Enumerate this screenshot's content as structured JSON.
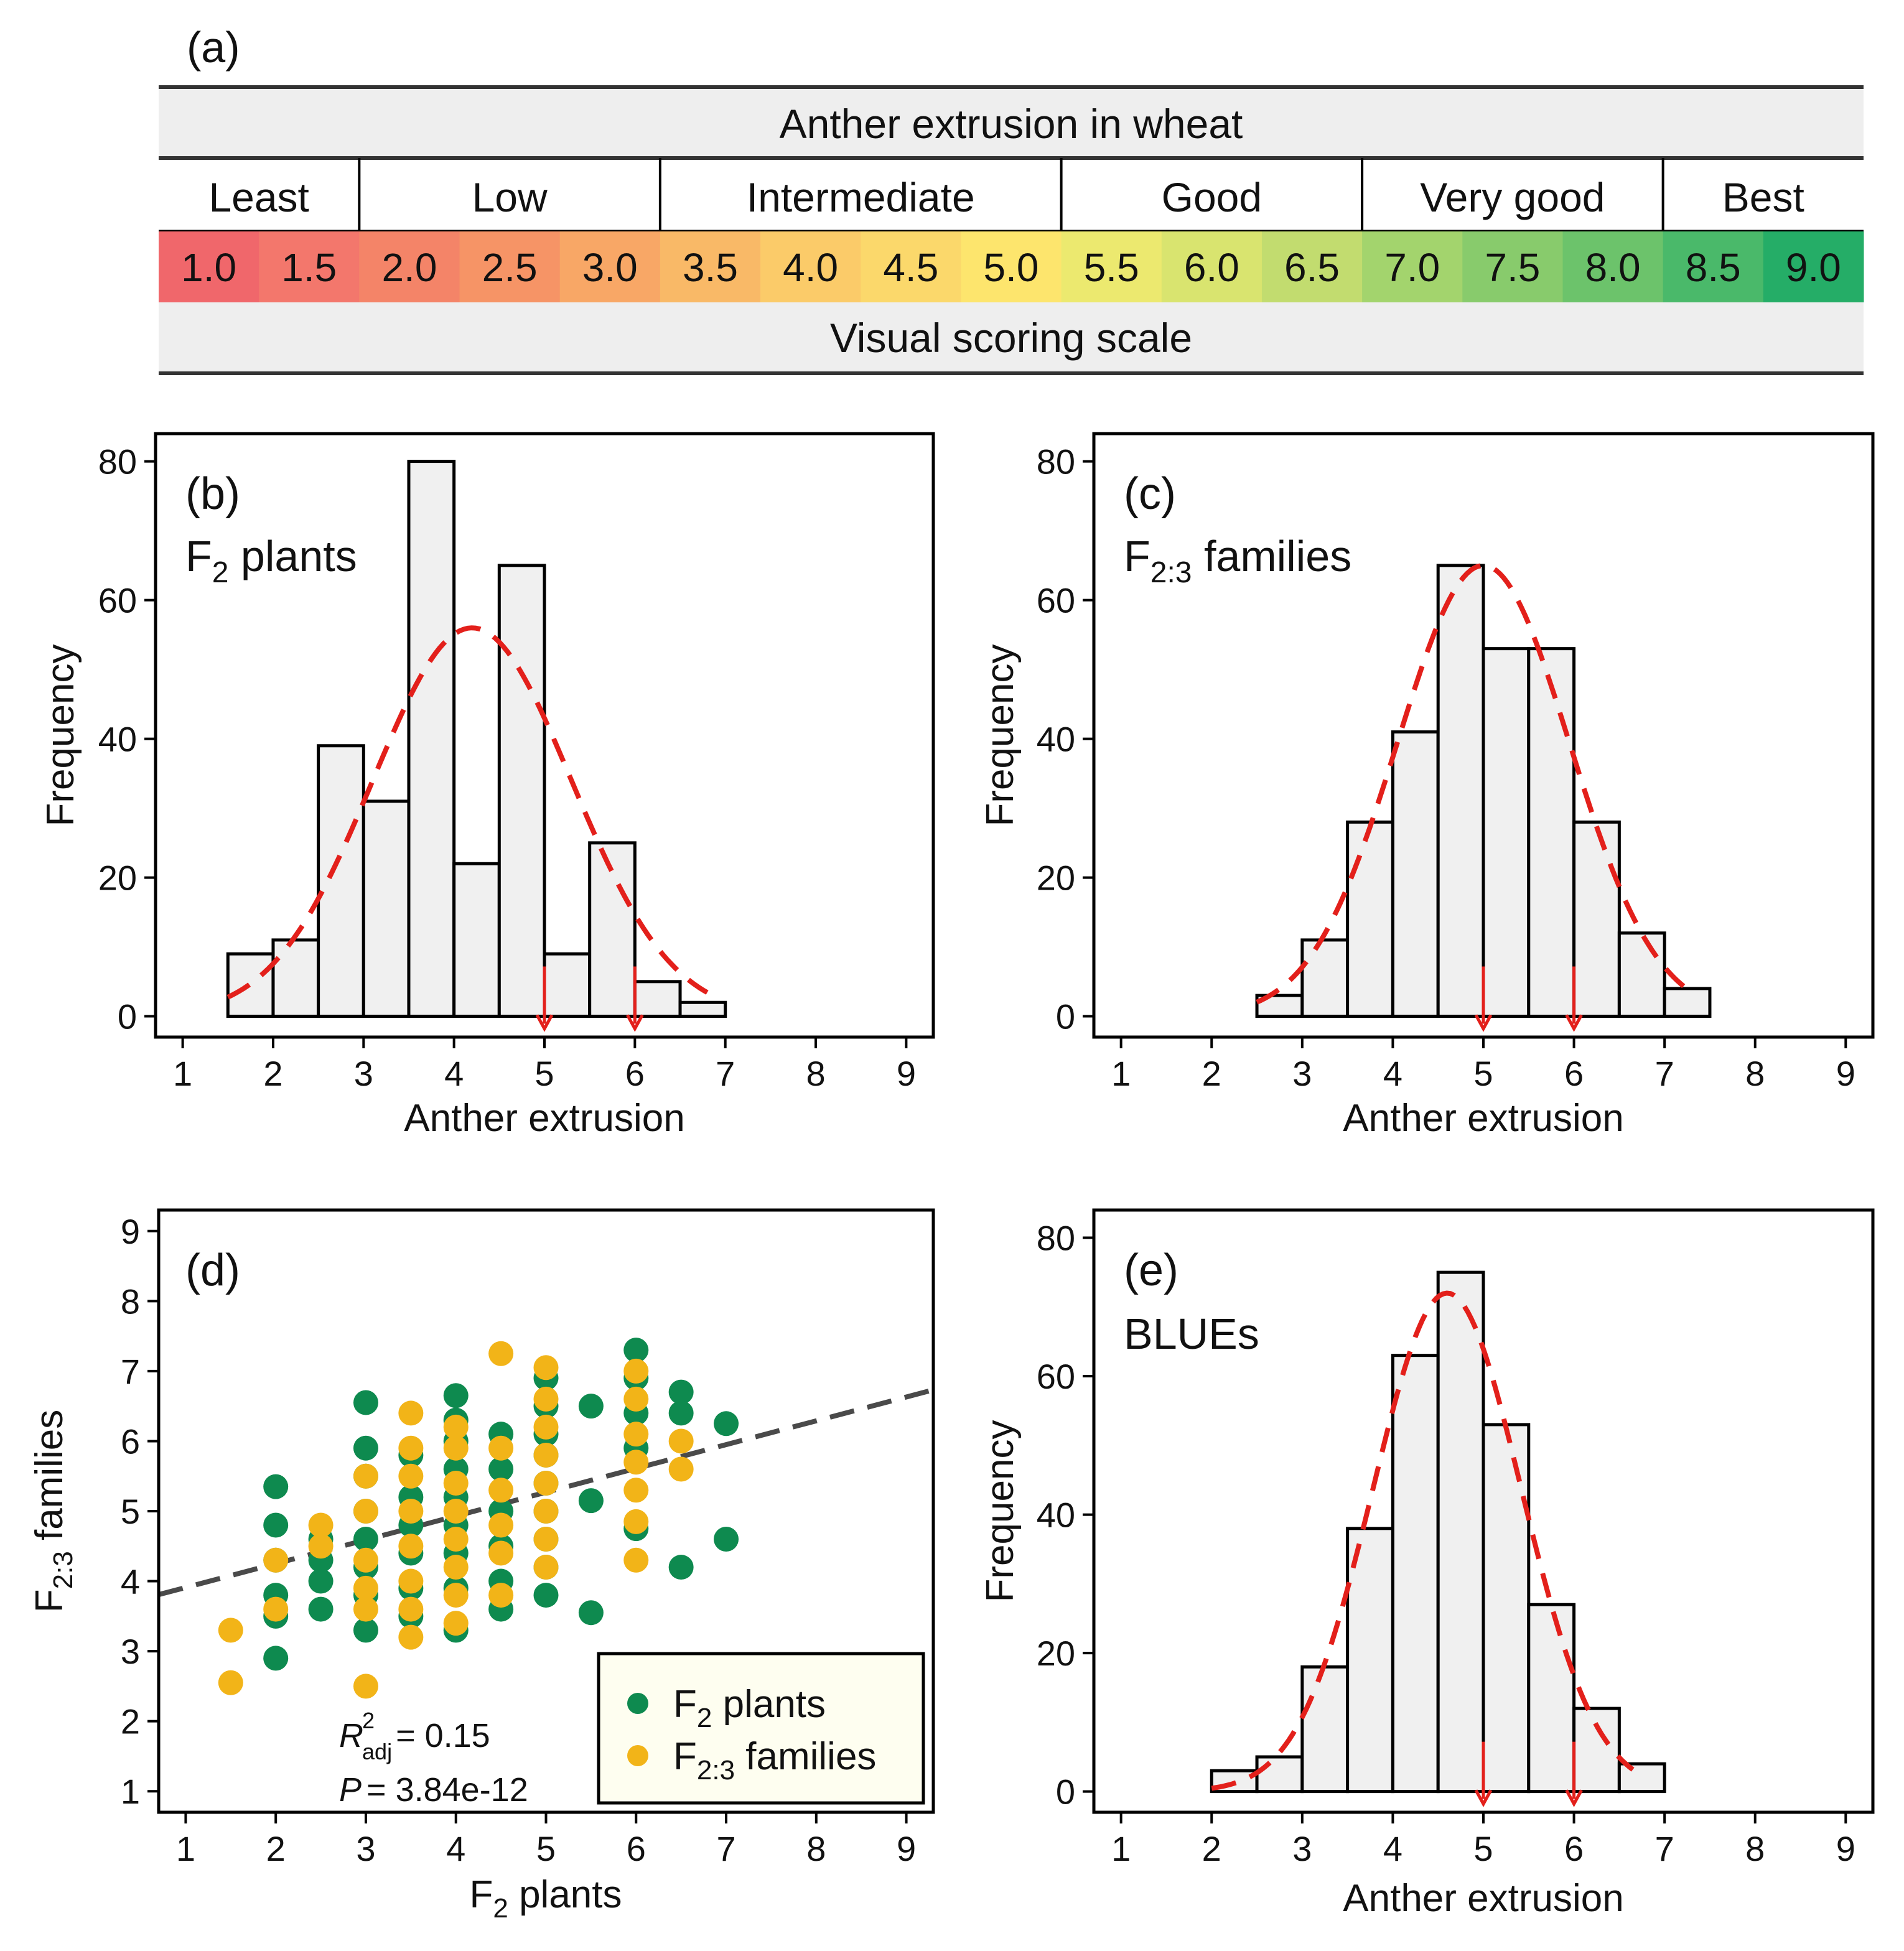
{
  "figure": {
    "panel_a": {
      "label": "(a)",
      "title": "Anther extrusion in wheat",
      "footer": "Visual scoring scale",
      "categories": [
        {
          "name": "Least",
          "scores": [
            "1.0",
            "1.5"
          ]
        },
        {
          "name": "Low",
          "scores": [
            "2.0",
            "2.5",
            "3.0"
          ]
        },
        {
          "name": "Intermediate",
          "scores": [
            "3.5",
            "4.0",
            "4.5",
            "5.0"
          ]
        },
        {
          "name": "Good",
          "scores": [
            "5.5",
            "6.0",
            "6.5"
          ]
        },
        {
          "name": "Very good",
          "scores": [
            "7.0",
            "7.5",
            "8.0"
          ]
        },
        {
          "name": "Best",
          "scores": [
            "8.5",
            "9.0"
          ]
        }
      ],
      "colors": [
        "#f0676b",
        "#f3776c",
        "#f48468",
        "#f69466",
        "#f8a766",
        "#f9b967",
        "#fbcb69",
        "#fbd86b",
        "#fde56d",
        "#ece96f",
        "#d9e46f",
        "#c2dc6f",
        "#a3d46d",
        "#88cb6c",
        "#6cc36b",
        "#4ab96a",
        "#25ad67"
      ]
    }
  },
  "chart_data": [
    {
      "id": "b",
      "type": "bar",
      "panel_label": "(b)",
      "series_label": {
        "base": "F",
        "sub": "2",
        "rest": " plants"
      },
      "bin_edges": [
        1.5,
        2,
        2.5,
        3,
        3.5,
        4,
        4.5,
        5,
        5.5,
        6,
        6.5,
        7
      ],
      "values": [
        9,
        11,
        39,
        31,
        80,
        22,
        65,
        9,
        25,
        5,
        2
      ],
      "normal_curve": {
        "mean": 4.2,
        "peak": 56,
        "sd": 1.1,
        "from": 1.5,
        "to": 6.8
      },
      "arrows": [
        5,
        6
      ],
      "xlabel": "Anther extrusion",
      "ylabel": "Frequency",
      "xlim": [
        0.7,
        9.3
      ],
      "ylim": [
        -3,
        84
      ],
      "xticks": [
        "1",
        "2",
        "3",
        "4",
        "5",
        "6",
        "7",
        "8",
        "9"
      ],
      "yticks": [
        "0",
        "20",
        "40",
        "60",
        "80"
      ]
    },
    {
      "id": "c",
      "type": "bar",
      "panel_label": "(c)",
      "series_label": {
        "base": "F",
        "sub": "2:3",
        "rest": " families"
      },
      "bin_edges": [
        2.5,
        3,
        3.5,
        4,
        4.5,
        5,
        5.5,
        6,
        6.5,
        7,
        7.5
      ],
      "values": [
        3,
        11,
        28,
        41,
        65,
        53,
        53,
        28,
        12,
        4
      ],
      "normal_curve": {
        "mean": 5.0,
        "peak": 65,
        "sd": 0.95,
        "from": 2.5,
        "to": 7.3
      },
      "arrows": [
        5,
        6
      ],
      "xlabel": "Anther extrusion",
      "ylabel": "Frequency",
      "xlim": [
        0.7,
        9.3
      ],
      "ylim": [
        -3,
        84
      ],
      "xticks": [
        "1",
        "2",
        "3",
        "4",
        "5",
        "6",
        "7",
        "8",
        "9"
      ],
      "yticks": [
        "0",
        "20",
        "40",
        "60",
        "80"
      ]
    },
    {
      "id": "d",
      "type": "scatter",
      "panel_label": "(d)",
      "xlabel": {
        "base": "F",
        "sub": "2",
        "rest": " plants"
      },
      "ylabel": {
        "base": "F",
        "sub": "2:3",
        "rest": " families"
      },
      "xlim": [
        0.7,
        9.3
      ],
      "ylim": [
        0.7,
        9.3
      ],
      "xticks": [
        "1",
        "2",
        "3",
        "4",
        "5",
        "6",
        "7",
        "8",
        "9"
      ],
      "yticks": [
        "1",
        "2",
        "3",
        "4",
        "5",
        "6",
        "7",
        "8",
        "9"
      ],
      "regression": {
        "intercept": 3.57,
        "slope": 0.34
      },
      "stats": {
        "r2_label": "R",
        "r2_sup": "2",
        "r2_sub": "adj",
        "r2_value": "= 0.15",
        "p_label": "P",
        "p_value": "= 3.84e-12"
      },
      "series": [
        {
          "name": "F2 plants",
          "legend": {
            "base": "F",
            "sub": "2",
            "rest": " plants"
          },
          "color": "#0e8a4f",
          "points": [
            [
              2,
              5.35
            ],
            [
              2,
              4.8
            ],
            [
              2,
              4.3
            ],
            [
              2,
              3.8
            ],
            [
              2,
              3.5
            ],
            [
              2,
              2.9
            ],
            [
              2.5,
              4.6
            ],
            [
              2.5,
              4.3
            ],
            [
              2.5,
              4.0
            ],
            [
              2.5,
              3.6
            ],
            [
              3,
              6.55
            ],
            [
              3,
              5.9
            ],
            [
              3,
              5.5
            ],
            [
              3,
              5.0
            ],
            [
              3,
              4.6
            ],
            [
              3,
              4.2
            ],
            [
              3,
              3.8
            ],
            [
              3,
              3.3
            ],
            [
              3.5,
              5.8
            ],
            [
              3.5,
              5.2
            ],
            [
              3.5,
              4.8
            ],
            [
              3.5,
              4.4
            ],
            [
              3.5,
              3.9
            ],
            [
              3.5,
              3.5
            ],
            [
              4,
              6.65
            ],
            [
              4,
              6.3
            ],
            [
              4,
              6.0
            ],
            [
              4,
              5.6
            ],
            [
              4,
              5.2
            ],
            [
              4,
              4.8
            ],
            [
              4,
              4.4
            ],
            [
              4,
              3.9
            ],
            [
              4,
              3.3
            ],
            [
              4.5,
              6.1
            ],
            [
              4.5,
              5.6
            ],
            [
              4.5,
              5.0
            ],
            [
              4.5,
              4.5
            ],
            [
              4.5,
              4.0
            ],
            [
              4.5,
              3.6
            ],
            [
              5,
              6.9
            ],
            [
              5,
              6.5
            ],
            [
              5,
              6.1
            ],
            [
              5,
              5.8
            ],
            [
              5,
              5.4
            ],
            [
              5,
              5.0
            ],
            [
              5,
              4.6
            ],
            [
              5,
              4.2
            ],
            [
              5,
              3.8
            ],
            [
              5.5,
              6.5
            ],
            [
              5.5,
              5.15
            ],
            [
              5.5,
              3.55
            ],
            [
              6,
              7.3
            ],
            [
              6,
              6.9
            ],
            [
              6,
              6.4
            ],
            [
              6,
              5.9
            ],
            [
              6,
              4.75
            ],
            [
              6.5,
              6.7
            ],
            [
              6.5,
              6.4
            ],
            [
              6.5,
              4.2
            ],
            [
              7,
              6.25
            ],
            [
              7,
              4.6
            ]
          ]
        },
        {
          "name": "F2:3 families",
          "legend": {
            "base": "F",
            "sub": "2:3",
            "rest": " families"
          },
          "color": "#f2b418",
          "points": [
            [
              1.5,
              3.3
            ],
            [
              1.5,
              2.55
            ],
            [
              2,
              4.3
            ],
            [
              2,
              3.6
            ],
            [
              2.5,
              4.8
            ],
            [
              2.5,
              4.5
            ],
            [
              3,
              5.5
            ],
            [
              3,
              5.0
            ],
            [
              3,
              4.3
            ],
            [
              3,
              3.9
            ],
            [
              3,
              3.6
            ],
            [
              3,
              2.5
            ],
            [
              3.5,
              6.4
            ],
            [
              3.5,
              5.9
            ],
            [
              3.5,
              5.5
            ],
            [
              3.5,
              5.0
            ],
            [
              3.5,
              4.5
            ],
            [
              3.5,
              4.0
            ],
            [
              3.5,
              3.6
            ],
            [
              3.5,
              3.2
            ],
            [
              4,
              6.2
            ],
            [
              4,
              5.9
            ],
            [
              4,
              5.4
            ],
            [
              4,
              5.0
            ],
            [
              4,
              4.6
            ],
            [
              4,
              4.2
            ],
            [
              4,
              3.8
            ],
            [
              4,
              3.4
            ],
            [
              4.5,
              7.25
            ],
            [
              4.5,
              5.9
            ],
            [
              4.5,
              5.3
            ],
            [
              4.5,
              4.8
            ],
            [
              4.5,
              4.4
            ],
            [
              4.5,
              3.8
            ],
            [
              5,
              7.05
            ],
            [
              5,
              6.6
            ],
            [
              5,
              6.2
            ],
            [
              5,
              5.8
            ],
            [
              5,
              5.4
            ],
            [
              5,
              5.0
            ],
            [
              5,
              4.6
            ],
            [
              5,
              4.2
            ],
            [
              6,
              7.0
            ],
            [
              6,
              6.6
            ],
            [
              6,
              6.1
            ],
            [
              6,
              5.7
            ],
            [
              6,
              5.3
            ],
            [
              6,
              4.85
            ],
            [
              6,
              4.3
            ],
            [
              6.5,
              6.0
            ],
            [
              6.5,
              5.6
            ]
          ]
        }
      ]
    },
    {
      "id": "e",
      "type": "bar",
      "panel_label": "(e)",
      "series_label": {
        "base": "BLUEs",
        "sub": "",
        "rest": ""
      },
      "bin_edges": [
        2,
        2.5,
        3,
        3.5,
        4,
        4.5,
        5,
        5.5,
        6,
        6.5,
        7
      ],
      "values": [
        3,
        5,
        18,
        38,
        63,
        75,
        53,
        27,
        12,
        4
      ],
      "normal_curve": {
        "mean": 4.6,
        "peak": 72,
        "sd": 0.82,
        "from": 2.0,
        "to": 6.65
      },
      "arrows": [
        5,
        6
      ],
      "xlabel": "Anther extrusion",
      "ylabel": "Frequency",
      "xlim": [
        0.7,
        9.3
      ],
      "ylim": [
        -3,
        84
      ],
      "xticks": [
        "1",
        "2",
        "3",
        "4",
        "5",
        "6",
        "7",
        "8",
        "9"
      ],
      "yticks": [
        "0",
        "20",
        "40",
        "60",
        "80"
      ]
    }
  ]
}
